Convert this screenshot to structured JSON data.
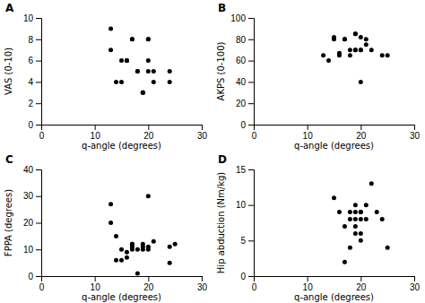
{
  "chart_data": [
    {
      "type": "scatter",
      "title": "A",
      "xlabel": "q-angle (degrees)",
      "ylabel": "VAS (0-10)",
      "xlim": [
        0,
        30
      ],
      "ylim": [
        0,
        10
      ],
      "xticks": [
        0,
        10,
        20,
        30
      ],
      "yticks": [
        0,
        2,
        4,
        6,
        8,
        10
      ],
      "color": "#000000",
      "x": [
        13,
        13,
        14,
        15,
        15,
        16,
        16,
        16,
        17,
        17,
        18,
        18,
        19,
        19,
        19,
        20,
        20,
        20,
        20,
        21,
        21,
        24,
        24
      ],
      "values": [
        9,
        7,
        4,
        6,
        4,
        6,
        6,
        6,
        8,
        8,
        5,
        5,
        3,
        3,
        3,
        8,
        8,
        6,
        5,
        5,
        4,
        5,
        4
      ]
    },
    {
      "type": "scatter",
      "title": "B",
      "xlabel": "q-angle (degrees)",
      "ylabel": "AKPS (0-100)",
      "xlim": [
        0,
        30
      ],
      "ylim": [
        0,
        100
      ],
      "xticks": [
        0,
        10,
        20,
        30
      ],
      "yticks": [
        0,
        20,
        40,
        60,
        80,
        100
      ],
      "color": "#000000",
      "x": [
        13,
        14,
        15,
        15,
        16,
        16,
        17,
        17,
        18,
        18,
        19,
        19,
        19,
        19,
        20,
        20,
        20,
        20,
        21,
        21,
        22,
        24,
        25
      ],
      "values": [
        65,
        60,
        80,
        82,
        65,
        67,
        80,
        80,
        65,
        70,
        70,
        70,
        85,
        85,
        40,
        70,
        70,
        82,
        80,
        75,
        70,
        65,
        65
      ]
    },
    {
      "type": "scatter",
      "title": "C",
      "xlabel": "q-angle (degrees)",
      "ylabel": "FPPA (degrees)",
      "xlim": [
        0,
        30
      ],
      "ylim": [
        0,
        40
      ],
      "xticks": [
        0,
        10,
        20,
        30
      ],
      "yticks": [
        0,
        10,
        20,
        30,
        40
      ],
      "color": "#000000",
      "x": [
        13,
        13,
        14,
        14,
        15,
        15,
        16,
        16,
        17,
        17,
        17,
        17,
        18,
        18,
        19,
        19,
        19,
        20,
        20,
        20,
        21,
        24,
        24,
        25
      ],
      "values": [
        20,
        27,
        15,
        6,
        10,
        6,
        9,
        7,
        12,
        12,
        10,
        11,
        1,
        10,
        10,
        12,
        11,
        10,
        30,
        11,
        13,
        11,
        5,
        12
      ]
    },
    {
      "type": "scatter",
      "title": "D",
      "xlabel": "q-angle (degrees)",
      "ylabel": "Hip abduction (Nm/kg)",
      "xlim": [
        0,
        30
      ],
      "ylim": [
        0,
        15
      ],
      "xticks": [
        0,
        10,
        20,
        30
      ],
      "yticks": [
        0,
        5,
        10,
        15
      ],
      "color": "#000000",
      "x": [
        15,
        16,
        17,
        17,
        18,
        18,
        18,
        19,
        19,
        19,
        19,
        19,
        20,
        20,
        20,
        20,
        20,
        21,
        21,
        22,
        23,
        24,
        25
      ],
      "values": [
        11,
        9,
        7,
        2,
        9,
        8,
        4,
        10,
        9,
        8,
        7,
        6,
        9,
        9,
        8,
        6,
        5,
        10,
        8,
        13,
        9,
        8,
        4
      ]
    }
  ]
}
